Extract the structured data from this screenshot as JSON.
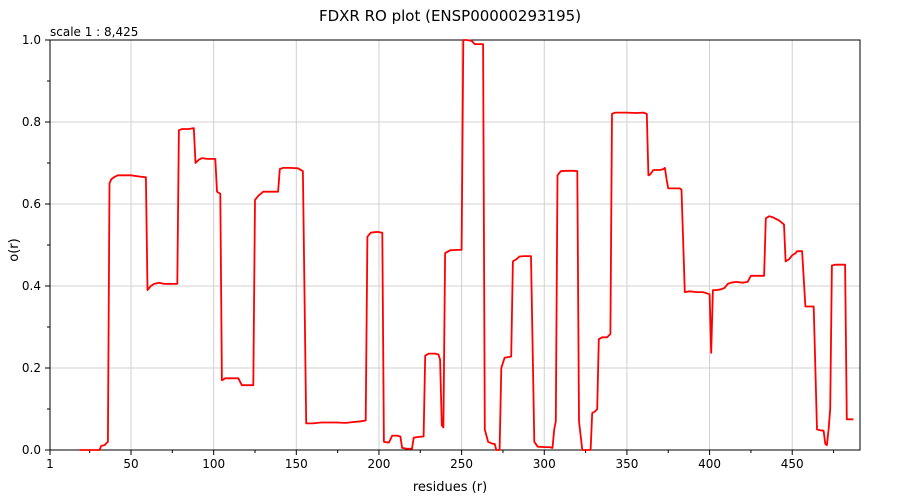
{
  "chart_data": {
    "type": "line",
    "title": "FDXR RO plot (ENSP00000293195)",
    "subtitle": "scale 1 : 8,425",
    "xlabel": "residues (r)",
    "ylabel": "o(r)",
    "xlim": [
      1,
      491
    ],
    "ylim": [
      0,
      1.0
    ],
    "x_ticks": [
      1,
      50,
      100,
      150,
      200,
      250,
      300,
      350,
      400,
      450
    ],
    "y_ticks": [
      0.0,
      0.2,
      0.4,
      0.6,
      0.8,
      1.0
    ],
    "x_tick_labels": [
      "1",
      "50",
      "100",
      "150",
      "200",
      "250",
      "300",
      "350",
      "400",
      "450"
    ],
    "y_tick_labels": [
      "0.0",
      "0.2",
      "0.4",
      "0.6",
      "0.8",
      "1.0"
    ],
    "grid": true,
    "legend": "none",
    "series": [
      {
        "color": "#ff0000",
        "points": [
          [
            19,
            0.0
          ],
          [
            23,
            0.0
          ],
          [
            25,
            0.0
          ],
          [
            31,
            0.0
          ],
          [
            32,
            0.01
          ],
          [
            34,
            0.012
          ],
          [
            36,
            0.02
          ],
          [
            37,
            0.65
          ],
          [
            38,
            0.66
          ],
          [
            40,
            0.666
          ],
          [
            42,
            0.67
          ],
          [
            45,
            0.67
          ],
          [
            50,
            0.67
          ],
          [
            55,
            0.667
          ],
          [
            59,
            0.665
          ],
          [
            60,
            0.39
          ],
          [
            62,
            0.4
          ],
          [
            64,
            0.405
          ],
          [
            67,
            0.408
          ],
          [
            70,
            0.405
          ],
          [
            74,
            0.405
          ],
          [
            78,
            0.405
          ],
          [
            79,
            0.78
          ],
          [
            81,
            0.783
          ],
          [
            85,
            0.783
          ],
          [
            88,
            0.785
          ],
          [
            89,
            0.7
          ],
          [
            91,
            0.708
          ],
          [
            93,
            0.712
          ],
          [
            96,
            0.71
          ],
          [
            100,
            0.71
          ],
          [
            101,
            0.71
          ],
          [
            102,
            0.63
          ],
          [
            104,
            0.625
          ],
          [
            105,
            0.17
          ],
          [
            107,
            0.175
          ],
          [
            110,
            0.175
          ],
          [
            115,
            0.175
          ],
          [
            117,
            0.158
          ],
          [
            121,
            0.158
          ],
          [
            124,
            0.158
          ],
          [
            125,
            0.61
          ],
          [
            127,
            0.62
          ],
          [
            130,
            0.63
          ],
          [
            134,
            0.63
          ],
          [
            139,
            0.63
          ],
          [
            140,
            0.685
          ],
          [
            142,
            0.688
          ],
          [
            146,
            0.688
          ],
          [
            151,
            0.687
          ],
          [
            154,
            0.68
          ],
          [
            156,
            0.065
          ],
          [
            160,
            0.065
          ],
          [
            165,
            0.067
          ],
          [
            170,
            0.067
          ],
          [
            174,
            0.067
          ],
          [
            180,
            0.066
          ],
          [
            184,
            0.068
          ],
          [
            189,
            0.07
          ],
          [
            192,
            0.072
          ],
          [
            193,
            0.52
          ],
          [
            195,
            0.53
          ],
          [
            199,
            0.532
          ],
          [
            202,
            0.53
          ],
          [
            203,
            0.02
          ],
          [
            206,
            0.018
          ],
          [
            208,
            0.035
          ],
          [
            211,
            0.035
          ],
          [
            213,
            0.033
          ],
          [
            214,
            0.005
          ],
          [
            217,
            0.003
          ],
          [
            220,
            0.003
          ],
          [
            221,
            0.03
          ],
          [
            224,
            0.032
          ],
          [
            227,
            0.033
          ],
          [
            228,
            0.23
          ],
          [
            230,
            0.235
          ],
          [
            234,
            0.235
          ],
          [
            236,
            0.233
          ],
          [
            237,
            0.22
          ],
          [
            238,
            0.06
          ],
          [
            239,
            0.055
          ],
          [
            240,
            0.48
          ],
          [
            243,
            0.487
          ],
          [
            247,
            0.488
          ],
          [
            250,
            0.488
          ],
          [
            251,
            1.0
          ],
          [
            253,
            1.0
          ],
          [
            256,
            0.998
          ],
          [
            258,
            0.99
          ],
          [
            260,
            0.99
          ],
          [
            263,
            0.99
          ],
          [
            264,
            0.05
          ],
          [
            266,
            0.02
          ],
          [
            269,
            0.015
          ],
          [
            270,
            0.015
          ],
          [
            271,
            0.0
          ],
          [
            273,
            0.0
          ],
          [
            274,
            0.2
          ],
          [
            276,
            0.225
          ],
          [
            280,
            0.228
          ],
          [
            281,
            0.46
          ],
          [
            283,
            0.465
          ],
          [
            285,
            0.472
          ],
          [
            288,
            0.473
          ],
          [
            292,
            0.473
          ],
          [
            294,
            0.02
          ],
          [
            296,
            0.008
          ],
          [
            300,
            0.007
          ],
          [
            303,
            0.007
          ],
          [
            305,
            0.005
          ],
          [
            306,
            0.05
          ],
          [
            307,
            0.07
          ],
          [
            308,
            0.67
          ],
          [
            310,
            0.68
          ],
          [
            313,
            0.681
          ],
          [
            318,
            0.681
          ],
          [
            320,
            0.68
          ],
          [
            321,
            0.07
          ],
          [
            323,
            0.0
          ],
          [
            326,
            0.0
          ],
          [
            328,
            0.0
          ],
          [
            329,
            0.09
          ],
          [
            331,
            0.095
          ],
          [
            332,
            0.1
          ],
          [
            333,
            0.27
          ],
          [
            335,
            0.275
          ],
          [
            338,
            0.275
          ],
          [
            340,
            0.283
          ],
          [
            341,
            0.82
          ],
          [
            343,
            0.823
          ],
          [
            350,
            0.823
          ],
          [
            355,
            0.822
          ],
          [
            360,
            0.823
          ],
          [
            362,
            0.82
          ],
          [
            363,
            0.67
          ],
          [
            364,
            0.672
          ],
          [
            366,
            0.683
          ],
          [
            370,
            0.683
          ],
          [
            372,
            0.685
          ],
          [
            373,
            0.688
          ],
          [
            374,
            0.66
          ],
          [
            375,
            0.638
          ],
          [
            380,
            0.638
          ],
          [
            382,
            0.638
          ],
          [
            383,
            0.635
          ],
          [
            385,
            0.385
          ],
          [
            388,
            0.387
          ],
          [
            392,
            0.385
          ],
          [
            396,
            0.385
          ],
          [
            400,
            0.38
          ],
          [
            401,
            0.237
          ],
          [
            402,
            0.39
          ],
          [
            404,
            0.39
          ],
          [
            407,
            0.392
          ],
          [
            409,
            0.395
          ],
          [
            411,
            0.405
          ],
          [
            413,
            0.408
          ],
          [
            416,
            0.41
          ],
          [
            420,
            0.408
          ],
          [
            423,
            0.41
          ],
          [
            425,
            0.425
          ],
          [
            428,
            0.425
          ],
          [
            433,
            0.425
          ],
          [
            434,
            0.565
          ],
          [
            436,
            0.57
          ],
          [
            438,
            0.568
          ],
          [
            442,
            0.56
          ],
          [
            445,
            0.55
          ],
          [
            446,
            0.46
          ],
          [
            448,
            0.465
          ],
          [
            450,
            0.475
          ],
          [
            452,
            0.48
          ],
          [
            453,
            0.485
          ],
          [
            456,
            0.485
          ],
          [
            458,
            0.35
          ],
          [
            460,
            0.35
          ],
          [
            463,
            0.35
          ],
          [
            465,
            0.05
          ],
          [
            467,
            0.048
          ],
          [
            469,
            0.047
          ],
          [
            470,
            0.015
          ],
          [
            471,
            0.012
          ],
          [
            472,
            0.05
          ],
          [
            473,
            0.1
          ],
          [
            474,
            0.45
          ],
          [
            476,
            0.452
          ],
          [
            479,
            0.452
          ],
          [
            482,
            0.452
          ],
          [
            483,
            0.075
          ],
          [
            485,
            0.075
          ],
          [
            487,
            0.075
          ]
        ]
      }
    ]
  }
}
